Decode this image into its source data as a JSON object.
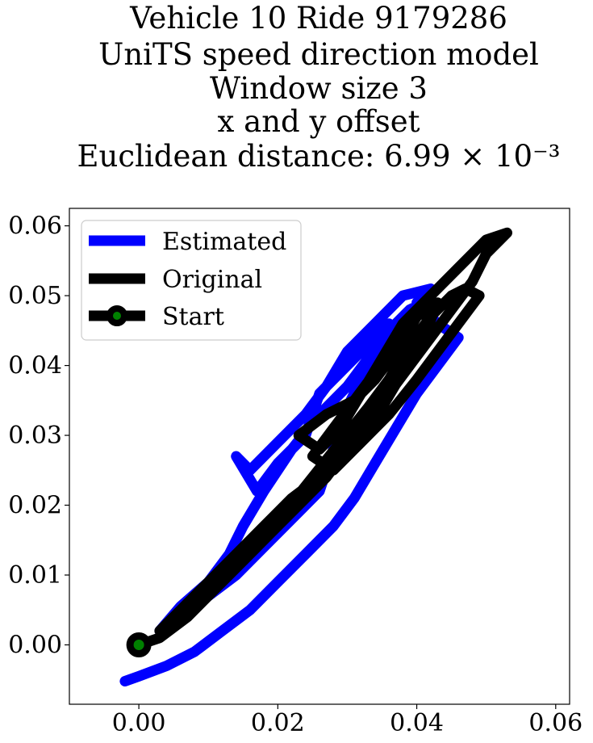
{
  "chart_data": {
    "type": "line",
    "title_lines": [
      "Vehicle 10 Ride 9179286",
      "UniTS speed direction model",
      "Window size 3",
      "x and y offset",
      "Euclidean distance: 6.99 × 10⁻³"
    ],
    "xlabel": "",
    "ylabel": "",
    "xlim": [
      -0.01,
      0.062
    ],
    "ylim": [
      -0.0085,
      0.0625
    ],
    "xticks": [
      0.0,
      0.02,
      0.04,
      0.06
    ],
    "xtick_labels": [
      "0.00",
      "0.02",
      "0.04",
      "0.06"
    ],
    "yticks": [
      0.0,
      0.01,
      0.02,
      0.03,
      0.04,
      0.05,
      0.06
    ],
    "ytick_labels": [
      "0.00",
      "0.01",
      "0.02",
      "0.03",
      "0.04",
      "0.05",
      "0.06"
    ],
    "grid": false,
    "legend_position": "top-left",
    "series": [
      {
        "name": "Estimated",
        "color": "#0000ff",
        "points": [
          [
            -0.002,
            -0.0052
          ],
          [
            0.0,
            -0.0045
          ],
          [
            0.004,
            -0.003
          ],
          [
            0.008,
            -0.001
          ],
          [
            0.012,
            0.002
          ],
          [
            0.016,
            0.005
          ],
          [
            0.02,
            0.009
          ],
          [
            0.024,
            0.013
          ],
          [
            0.028,
            0.017
          ],
          [
            0.031,
            0.021
          ],
          [
            0.034,
            0.026
          ],
          [
            0.037,
            0.031
          ],
          [
            0.04,
            0.036
          ],
          [
            0.043,
            0.04
          ],
          [
            0.046,
            0.044
          ],
          [
            0.043,
            0.046
          ],
          [
            0.04,
            0.049
          ],
          [
            0.042,
            0.051
          ],
          [
            0.038,
            0.05
          ],
          [
            0.034,
            0.046
          ],
          [
            0.03,
            0.042
          ],
          [
            0.027,
            0.037
          ],
          [
            0.024,
            0.033
          ],
          [
            0.02,
            0.029
          ],
          [
            0.016,
            0.025
          ],
          [
            0.014,
            0.027
          ],
          [
            0.017,
            0.022
          ],
          [
            0.02,
            0.026
          ],
          [
            0.024,
            0.03
          ],
          [
            0.026,
            0.036
          ],
          [
            0.03,
            0.04
          ],
          [
            0.033,
            0.043
          ],
          [
            0.036,
            0.046
          ],
          [
            0.033,
            0.04
          ],
          [
            0.03,
            0.034
          ],
          [
            0.028,
            0.028
          ],
          [
            0.026,
            0.022
          ],
          [
            0.022,
            0.018
          ],
          [
            0.018,
            0.014
          ],
          [
            0.014,
            0.01
          ],
          [
            0.01,
            0.007
          ],
          [
            0.006,
            0.004
          ],
          [
            0.003,
            0.002
          ],
          [
            0.006,
            0.0055
          ],
          [
            0.01,
            0.009
          ],
          [
            0.013,
            0.013
          ],
          [
            0.015,
            0.017
          ],
          [
            0.018,
            0.022
          ],
          [
            0.022,
            0.028
          ],
          [
            0.026,
            0.033
          ],
          [
            0.03,
            0.037
          ],
          [
            0.033,
            0.041
          ],
          [
            0.036,
            0.045
          ],
          [
            0.039,
            0.048
          ],
          [
            0.041,
            0.049
          ]
        ]
      },
      {
        "name": "Original",
        "color": "#000000",
        "points": [
          [
            0.0,
            0.0
          ],
          [
            0.003,
            0.001
          ],
          [
            0.007,
            0.004
          ],
          [
            0.011,
            0.008
          ],
          [
            0.015,
            0.012
          ],
          [
            0.019,
            0.016
          ],
          [
            0.023,
            0.02
          ],
          [
            0.027,
            0.024
          ],
          [
            0.03,
            0.028
          ],
          [
            0.033,
            0.032
          ],
          [
            0.036,
            0.036
          ],
          [
            0.039,
            0.04
          ],
          [
            0.042,
            0.044
          ],
          [
            0.045,
            0.048
          ],
          [
            0.048,
            0.052
          ],
          [
            0.05,
            0.056
          ],
          [
            0.053,
            0.059
          ],
          [
            0.05,
            0.058
          ],
          [
            0.046,
            0.054
          ],
          [
            0.042,
            0.05
          ],
          [
            0.038,
            0.046
          ],
          [
            0.035,
            0.041
          ],
          [
            0.032,
            0.036
          ],
          [
            0.029,
            0.031
          ],
          [
            0.026,
            0.028
          ],
          [
            0.023,
            0.03
          ],
          [
            0.027,
            0.033
          ],
          [
            0.031,
            0.035
          ],
          [
            0.034,
            0.038
          ],
          [
            0.037,
            0.042
          ],
          [
            0.04,
            0.047
          ],
          [
            0.043,
            0.049
          ],
          [
            0.041,
            0.044
          ],
          [
            0.038,
            0.039
          ],
          [
            0.035,
            0.034
          ],
          [
            0.032,
            0.03
          ],
          [
            0.029,
            0.027
          ],
          [
            0.026,
            0.024
          ],
          [
            0.022,
            0.021
          ],
          [
            0.018,
            0.017
          ],
          [
            0.014,
            0.013
          ],
          [
            0.01,
            0.009
          ],
          [
            0.006,
            0.005
          ],
          [
            0.003,
            0.002
          ],
          [
            0.007,
            0.0045
          ],
          [
            0.012,
            0.009
          ],
          [
            0.017,
            0.014
          ],
          [
            0.021,
            0.019
          ],
          [
            0.025,
            0.024
          ],
          [
            0.029,
            0.029
          ],
          [
            0.033,
            0.034
          ],
          [
            0.036,
            0.038
          ],
          [
            0.039,
            0.043
          ],
          [
            0.042,
            0.047
          ],
          [
            0.045,
            0.05
          ],
          [
            0.047,
            0.051
          ],
          [
            0.049,
            0.05
          ],
          [
            0.046,
            0.046
          ],
          [
            0.043,
            0.042
          ],
          [
            0.04,
            0.038
          ],
          [
            0.036,
            0.033
          ],
          [
            0.032,
            0.029
          ],
          [
            0.028,
            0.025
          ],
          [
            0.025,
            0.027
          ],
          [
            0.028,
            0.031
          ],
          [
            0.031,
            0.035
          ],
          [
            0.034,
            0.039
          ]
        ]
      }
    ],
    "start": {
      "name": "Start",
      "x": 0.0,
      "y": 0.0,
      "edge_color": "#000000",
      "face_color": "#008000"
    },
    "legend": [
      "Estimated",
      "Original",
      "Start"
    ]
  }
}
